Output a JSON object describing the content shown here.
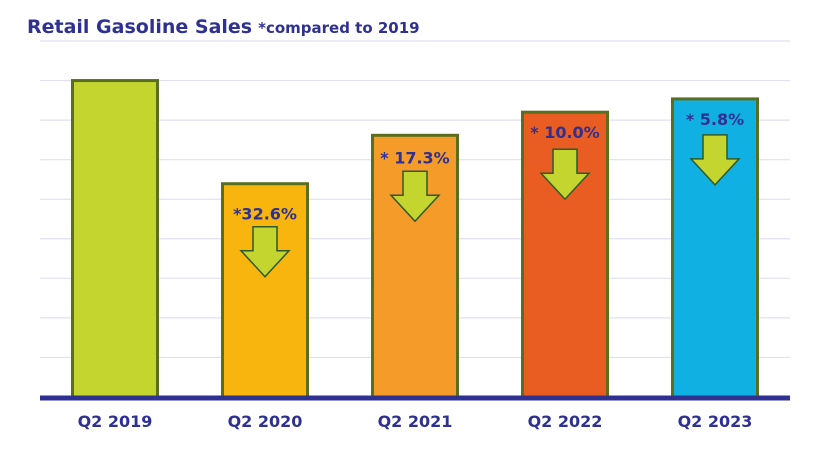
{
  "chart_data": {
    "type": "bar",
    "title": "Retail Gasoline Sales",
    "subtitle": "*compared to 2019",
    "categories": [
      "Q2 2019",
      "Q2 2020",
      "Q2 2021",
      "Q2 2022",
      "Q2 2023"
    ],
    "values": [
      100,
      67.4,
      82.7,
      90.0,
      94.2
    ],
    "annotations": [
      "",
      "*32.6%",
      "* 17.3%",
      "* 10.0%",
      "* 5.8%"
    ],
    "annotation_icon": "down-arrow-icon",
    "bar_colors": [
      "#c3d52e",
      "#f7b50d",
      "#f49b2a",
      "#ea5d22",
      "#11b0e3"
    ],
    "bar_border_color": "#5a6e1f",
    "arrow_color": "#c3d52e",
    "text_color": "#2e3192",
    "xlabel": "",
    "ylabel": "",
    "ylim": [
      0,
      112.5
    ],
    "y_tick_labels_shown": false,
    "grid": true,
    "legend": "none"
  }
}
